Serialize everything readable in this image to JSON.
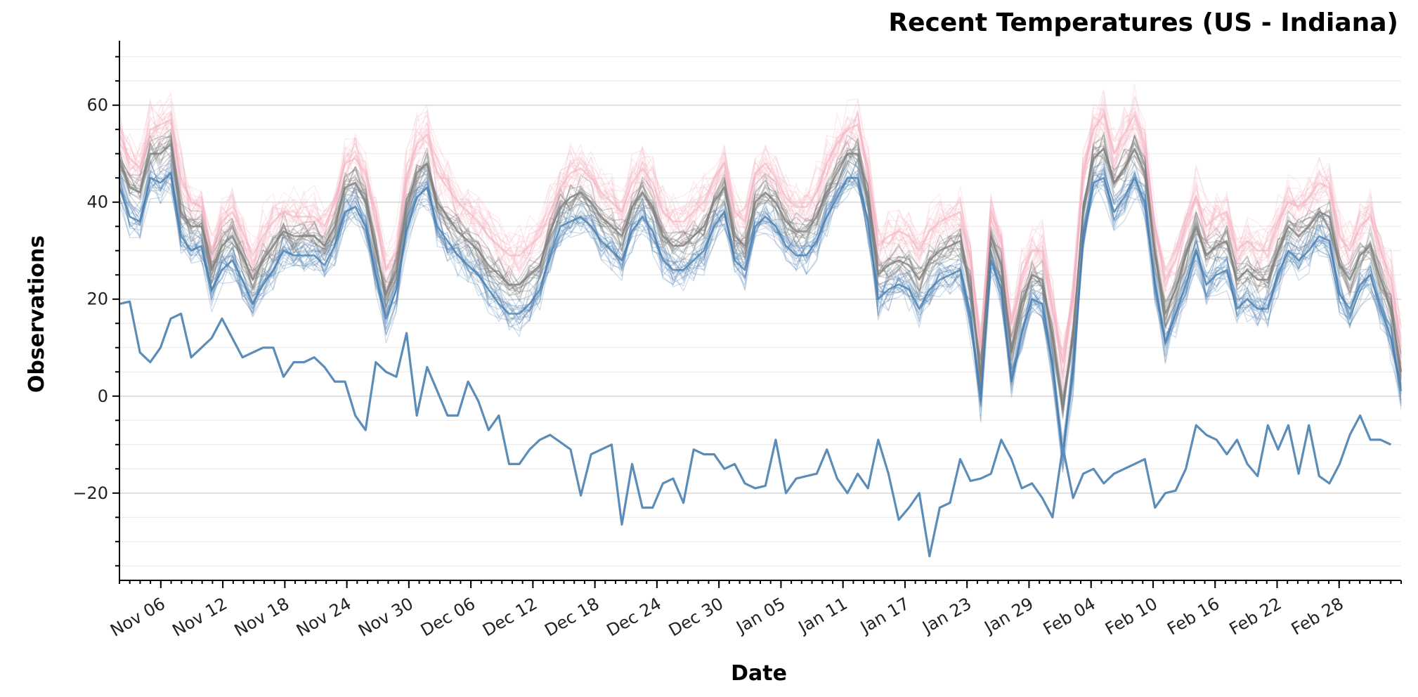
{
  "chart_data": {
    "type": "line",
    "title": "Recent Temperatures (US - Indiana)",
    "xlabel": "Date",
    "ylabel": "Observations",
    "ylim": [
      -38,
      73
    ],
    "yticks": [
      -20,
      0,
      20,
      40,
      60
    ],
    "ygrid_step": 5,
    "grid": true,
    "x_start": "2018-11-02",
    "x_end": "2019-03-06",
    "xtick_dates": [
      "2018-11-06",
      "2018-11-12",
      "2018-11-18",
      "2018-11-24",
      "2018-11-30",
      "2018-12-06",
      "2018-12-12",
      "2018-12-18",
      "2018-12-24",
      "2018-12-30",
      "2019-01-05",
      "2019-01-11",
      "2019-01-17",
      "2019-01-23",
      "2019-01-29",
      "2019-02-04",
      "2019-02-10",
      "2019-02-16",
      "2019-02-22",
      "2019-02-28"
    ],
    "xtick_labels": [
      "Nov 06",
      "Nov 12",
      "Nov 18",
      "Nov 24",
      "Nov 30",
      "Dec 06",
      "Dec 12",
      "Dec 18",
      "Dec 24",
      "Dec 30",
      "Jan 05",
      "Jan 11",
      "Jan 17",
      "Jan 23",
      "Jan 29",
      "Feb 04",
      "Feb 10",
      "Feb 16",
      "Feb 22",
      "Feb 28"
    ],
    "colors": {
      "high": "#f4b3c2",
      "mean": "#7f7f7f",
      "low": "#4a7fb0",
      "record_low": "#5b8db8"
    },
    "series": [
      {
        "role": "typical-high",
        "values": [
          54,
          49,
          47,
          55,
          56,
          57,
          45,
          40,
          39,
          30,
          36,
          38,
          34,
          29,
          33,
          36,
          38,
          37,
          37,
          37,
          35,
          40,
          48,
          49,
          46,
          36,
          26,
          30,
          45,
          52,
          54,
          46,
          43,
          40,
          38,
          36,
          33,
          31,
          29,
          29,
          31,
          33,
          38,
          43,
          46,
          47,
          45,
          42,
          40,
          38,
          44,
          47,
          44,
          38,
          36,
          36,
          38,
          40,
          45,
          48,
          38,
          36,
          46,
          48,
          45,
          41,
          39,
          39,
          42,
          48,
          52,
          55,
          56,
          47,
          31,
          33,
          34,
          33,
          30,
          34,
          36,
          37,
          38,
          28,
          10,
          38,
          32,
          15,
          25,
          30,
          30,
          18,
          7,
          20,
          46,
          55,
          58,
          50,
          54,
          58,
          52,
          35,
          24,
          28,
          35,
          41,
          35,
          37,
          38,
          30,
          32,
          30,
          30,
          36,
          40,
          39,
          41,
          44,
          43,
          33,
          30,
          35,
          37,
          30,
          24,
          10
        ]
      },
      {
        "role": "typical-mean",
        "values": [
          48,
          43,
          42,
          50,
          50,
          52,
          38,
          35,
          35,
          26,
          31,
          33,
          29,
          24,
          28,
          31,
          34,
          33,
          33,
          33,
          31,
          35,
          43,
          44,
          40,
          30,
          21,
          26,
          39,
          46,
          48,
          40,
          37,
          34,
          32,
          30,
          27,
          25,
          23,
          23,
          25,
          27,
          34,
          39,
          41,
          42,
          40,
          37,
          35,
          33,
          39,
          42,
          39,
          33,
          31,
          31,
          33,
          35,
          40,
          43,
          33,
          31,
          40,
          42,
          40,
          36,
          34,
          34,
          37,
          42,
          46,
          50,
          50,
          41,
          25,
          27,
          28,
          27,
          24,
          28,
          30,
          31,
          32,
          22,
          4,
          33,
          27,
          9,
          19,
          25,
          24,
          12,
          -2,
          12,
          39,
          49,
          51,
          44,
          47,
          51,
          46,
          29,
          17,
          22,
          29,
          35,
          29,
          31,
          32,
          24,
          26,
          24,
          24,
          30,
          35,
          33,
          35,
          38,
          37,
          27,
          24,
          29,
          31,
          24,
          18,
          5
        ]
      },
      {
        "role": "typical-low",
        "values": [
          43,
          37,
          36,
          45,
          44,
          46,
          33,
          30,
          31,
          22,
          26,
          28,
          24,
          19,
          23,
          26,
          30,
          29,
          29,
          29,
          27,
          31,
          38,
          39,
          35,
          25,
          16,
          22,
          34,
          41,
          43,
          35,
          32,
          29,
          27,
          25,
          22,
          19,
          17,
          17,
          19,
          22,
          29,
          35,
          36,
          37,
          35,
          32,
          30,
          28,
          34,
          37,
          34,
          28,
          26,
          26,
          28,
          30,
          35,
          38,
          28,
          26,
          35,
          37,
          35,
          31,
          29,
          29,
          32,
          37,
          41,
          45,
          45,
          36,
          20,
          22,
          23,
          22,
          18,
          22,
          24,
          25,
          26,
          16,
          -1,
          28,
          22,
          3,
          13,
          20,
          19,
          6,
          -12,
          5,
          33,
          44,
          45,
          38,
          41,
          45,
          40,
          23,
          11,
          17,
          23,
          30,
          23,
          25,
          26,
          18,
          20,
          18,
          18,
          25,
          30,
          28,
          30,
          33,
          32,
          21,
          18,
          23,
          25,
          18,
          12,
          1
        ]
      },
      {
        "role": "record-low",
        "values": [
          19,
          19.5,
          9,
          7,
          10,
          16,
          17,
          8,
          10,
          12,
          16,
          12,
          8,
          9,
          10,
          10,
          4,
          7,
          7,
          8,
          6,
          3,
          3,
          -4,
          -7,
          7,
          5,
          4,
          13,
          -4,
          6,
          1,
          -4,
          -4,
          3,
          -1,
          -7,
          -4,
          -14,
          -14,
          -11,
          -9,
          -8,
          -9.5,
          -11,
          -20.5,
          -12,
          -11,
          -10,
          -26.5,
          -14,
          -23,
          -23,
          -18,
          -17,
          -22,
          -11,
          -12,
          -12,
          -15,
          -14,
          -18,
          -19,
          -18.5,
          -9,
          -20,
          -17,
          -16.5,
          -16,
          -11,
          -17,
          -20,
          -16,
          -19,
          -9,
          -16,
          -25.5,
          -23,
          -20,
          -33,
          -23,
          -22,
          -13,
          -17.5,
          -17,
          -16,
          -9,
          -13,
          -19,
          -18,
          -21,
          -25,
          -10.5,
          -21,
          -16,
          -15,
          -18,
          -16,
          -15,
          -14,
          -13,
          -23,
          -20,
          -19.5,
          -15,
          -6,
          -8,
          -9,
          -12,
          -9,
          -14,
          -16.5,
          -6,
          -11,
          -6,
          -16,
          -6,
          -16.5,
          -18,
          -14,
          -8,
          -4,
          -9,
          -9,
          -10
        ]
      }
    ]
  }
}
